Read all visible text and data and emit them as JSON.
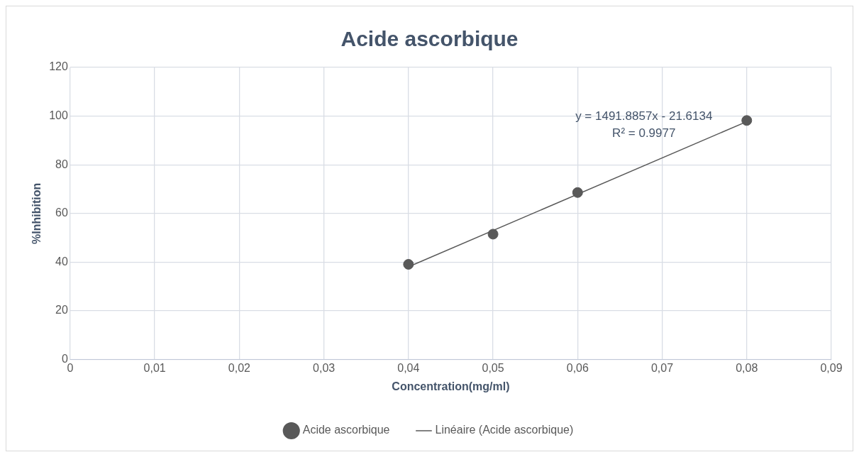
{
  "chart_data": {
    "type": "scatter",
    "title": "Acide ascorbique",
    "xlabel": "Concentration(mg/ml)",
    "ylabel": "%Inhibition",
    "x": [
      0.04,
      0.05,
      0.06,
      0.08
    ],
    "series": [
      {
        "name": "Acide ascorbique",
        "color": "#595959",
        "values": [
          39.1,
          51.5,
          68.6,
          98.2
        ],
        "marker": "circle"
      },
      {
        "name": "Linéaire (Acide ascorbique)",
        "type": "line",
        "color": "#595959",
        "x": [
          0.04,
          0.08
        ],
        "values": [
          38.06,
          97.74
        ],
        "marker": "none"
      }
    ],
    "xlim": [
      0,
      0.09
    ],
    "xticks": [
      0,
      {
        "value": 0.01,
        "label": "0,01"
      },
      {
        "value": 0.02,
        "label": "0,02"
      },
      {
        "value": 0.03,
        "label": "0,03"
      },
      {
        "value": 0.04,
        "label": "0,04"
      },
      {
        "value": 0.05,
        "label": "0,05"
      },
      {
        "value": 0.06,
        "label": "0,06"
      },
      {
        "value": 0.07,
        "label": "0,07"
      },
      {
        "value": 0.08,
        "label": "0,08"
      },
      {
        "value": 0.09,
        "label": "0,09"
      }
    ],
    "ylim": [
      0,
      120
    ],
    "yticks": [
      0,
      20,
      40,
      60,
      80,
      100,
      120
    ],
    "annotations": [
      "y = 1491.8857x - 21.6134",
      "R² = 0.9977"
    ],
    "grid": true,
    "legend": "bottom"
  }
}
